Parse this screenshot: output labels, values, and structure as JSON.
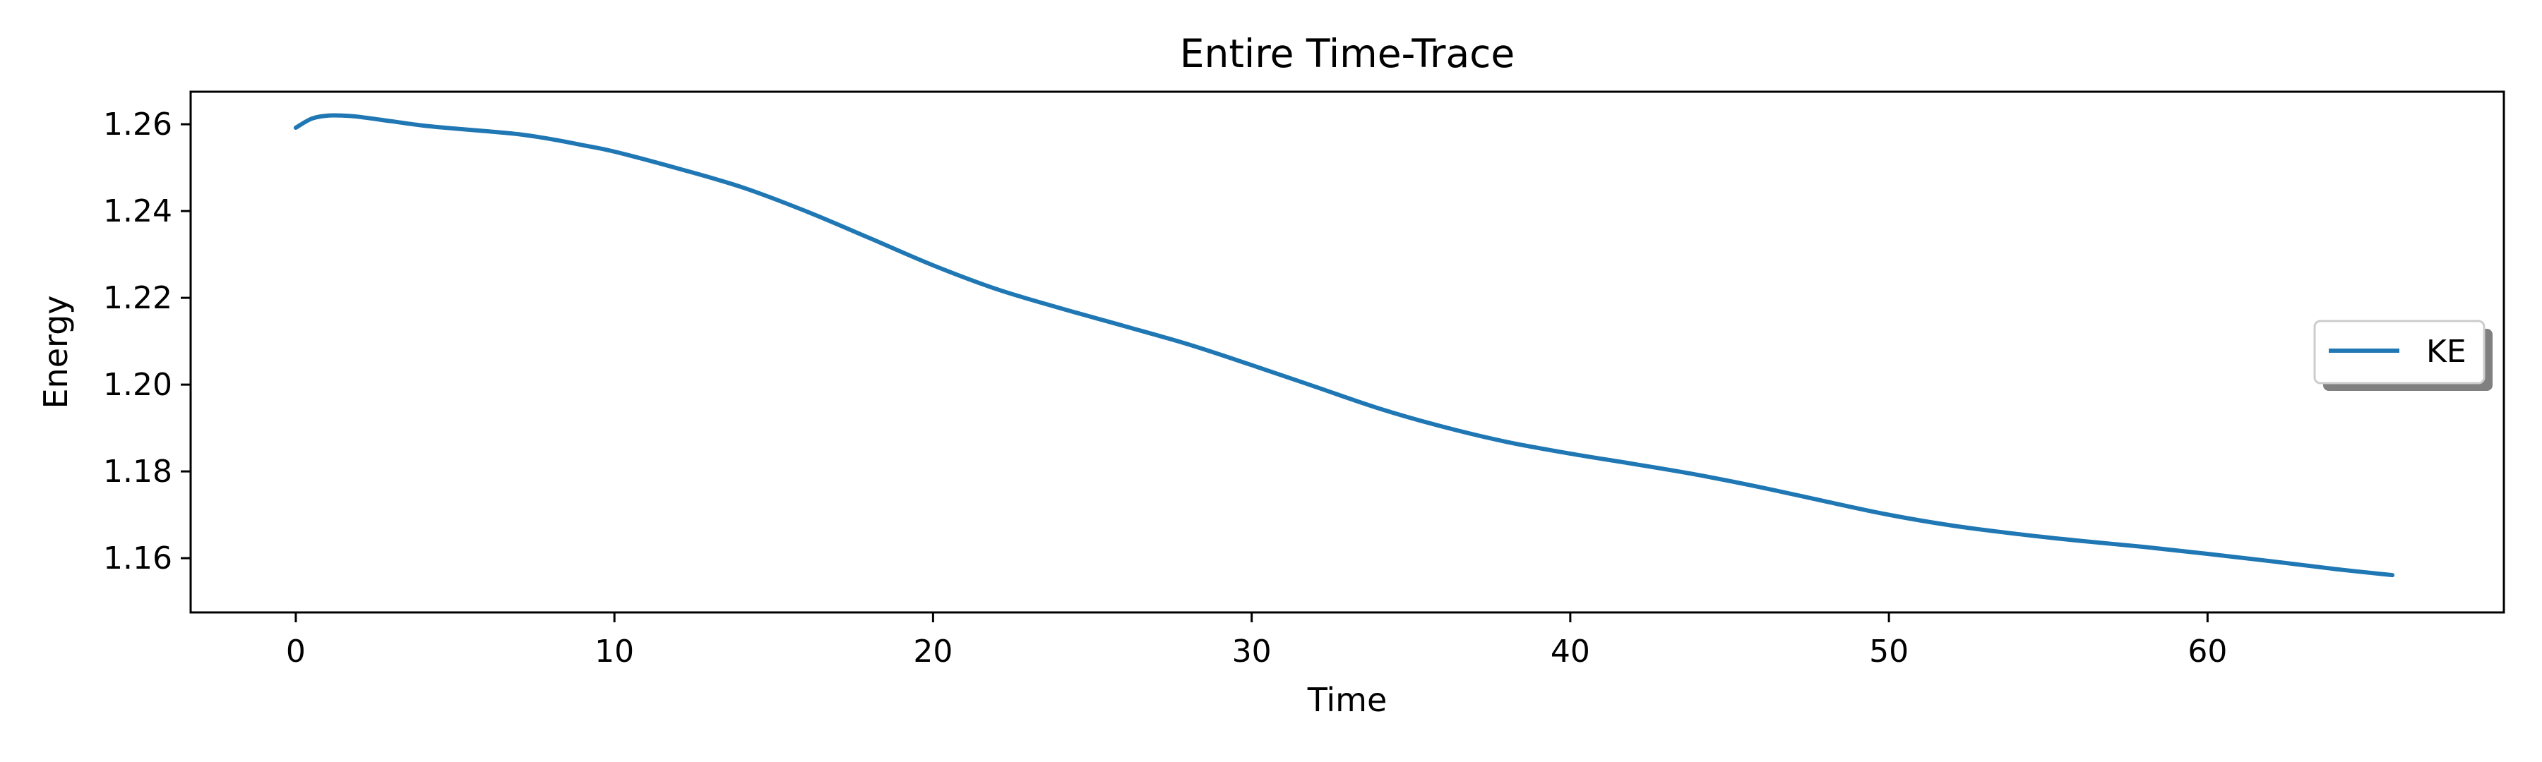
{
  "chart_data": {
    "type": "line",
    "title": "Entire Time-Trace",
    "xlabel": "Time",
    "ylabel": "Energy",
    "xlim": [
      -3.3,
      69.3
    ],
    "ylim": [
      1.1475,
      1.2675
    ],
    "xticks": [
      0,
      10,
      20,
      30,
      40,
      50,
      60
    ],
    "xtick_labels": [
      "0",
      "10",
      "20",
      "30",
      "40",
      "50",
      "60"
    ],
    "yticks": [
      1.16,
      1.18,
      1.2,
      1.22,
      1.24,
      1.26
    ],
    "ytick_labels": [
      "1.16",
      "1.18",
      "1.20",
      "1.22",
      "1.24",
      "1.26"
    ],
    "grid": false,
    "legend": {
      "position": "center-right",
      "entries": [
        "KE"
      ]
    },
    "series": [
      {
        "name": "KE",
        "color": "#1f77b4",
        "x": [
          0,
          0.5,
          1,
          1.5,
          2,
          3,
          4,
          5,
          6,
          7,
          8,
          9,
          10,
          12,
          14,
          16,
          18,
          20,
          22,
          24,
          26,
          28,
          30,
          32,
          34,
          36,
          38,
          40,
          42,
          44,
          46,
          48,
          50,
          52,
          54,
          56,
          58,
          60,
          62,
          64,
          65.8
        ],
        "values": [
          1.2592,
          1.2613,
          1.262,
          1.262,
          1.2617,
          1.2607,
          1.2597,
          1.259,
          1.2584,
          1.2577,
          1.2566,
          1.2552,
          1.2537,
          1.2498,
          1.2455,
          1.24,
          1.2338,
          1.2275,
          1.222,
          1.2176,
          1.2135,
          1.2093,
          1.2045,
          1.1995,
          1.1945,
          1.1903,
          1.1868,
          1.1841,
          1.1817,
          1.1792,
          1.1763,
          1.1731,
          1.17,
          1.1675,
          1.1656,
          1.164,
          1.1626,
          1.161,
          1.1593,
          1.1575,
          1.1561
        ]
      }
    ]
  }
}
